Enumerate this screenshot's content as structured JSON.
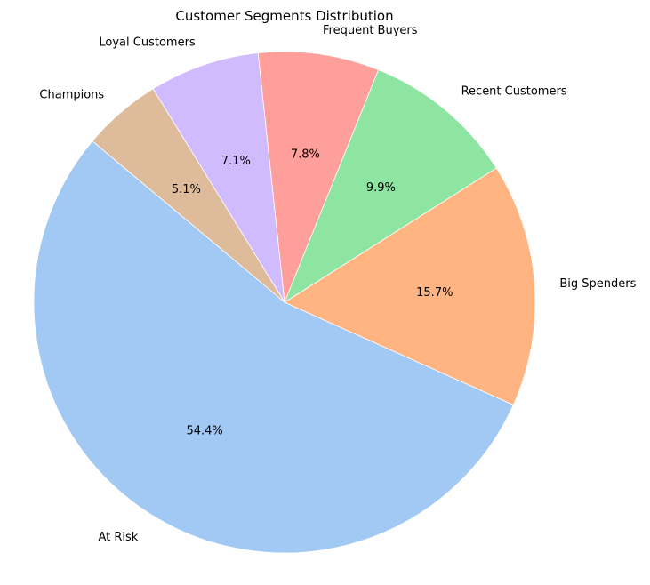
{
  "chart_data": {
    "type": "pie",
    "title": "Customer Segments Distribution",
    "slices": [
      {
        "label": "At Risk",
        "value": 54.4,
        "pct_text": "54.4%",
        "color": "#a1c9f4"
      },
      {
        "label": "Big Spenders",
        "value": 15.7,
        "pct_text": "15.7%",
        "color": "#ffb482"
      },
      {
        "label": "Recent Customers",
        "value": 9.9,
        "pct_text": "9.9%",
        "color": "#8de5a1"
      },
      {
        "label": "Frequent Buyers",
        "value": 7.8,
        "pct_text": "7.8%",
        "color": "#ff9f9b"
      },
      {
        "label": "Loyal Customers",
        "value": 7.1,
        "pct_text": "7.1%",
        "color": "#d0bbff"
      },
      {
        "label": "Champions",
        "value": 5.1,
        "pct_text": "5.1%",
        "color": "#debb9b"
      }
    ],
    "start_angle_deg": 140,
    "direction": "counterclockwise",
    "legend": "none"
  }
}
